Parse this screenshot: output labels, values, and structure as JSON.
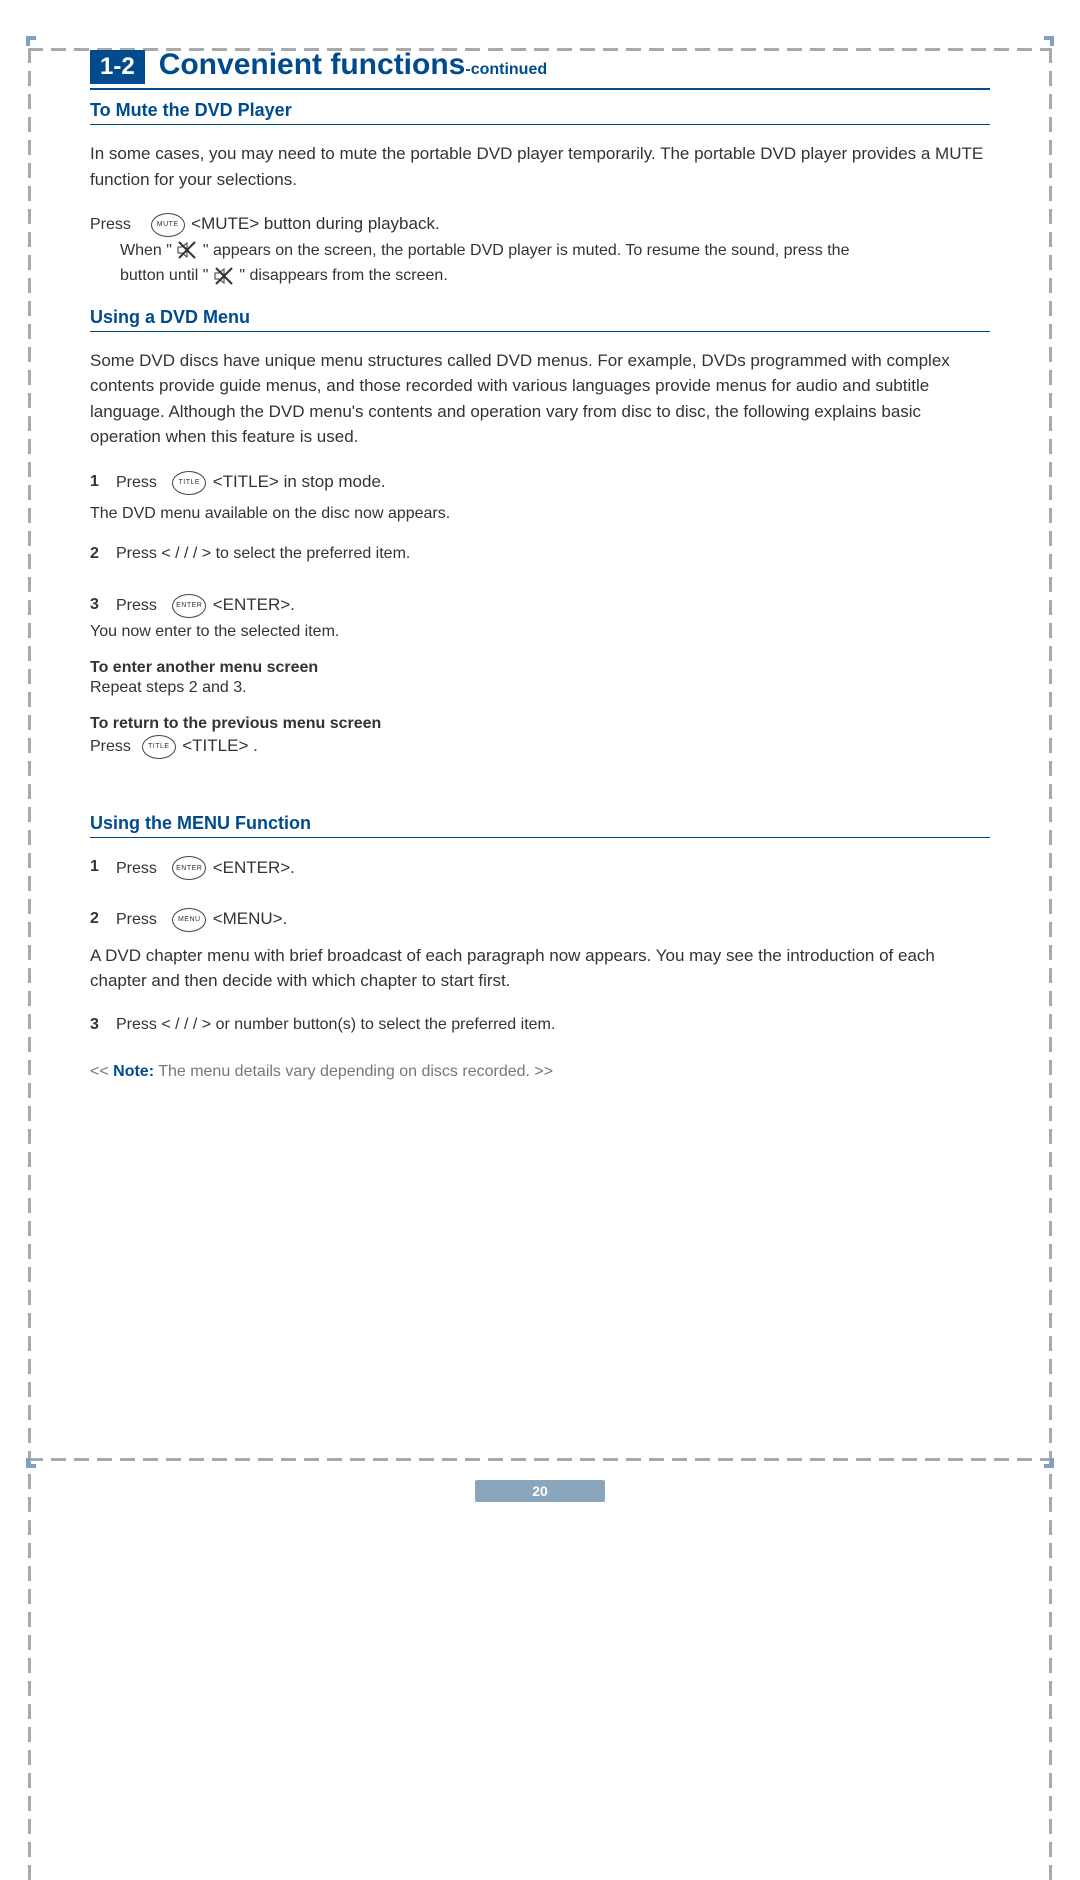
{
  "colors": {
    "accent": "#004b8d",
    "dash_gray": "#a9a9a9",
    "dash_blue": "#7da0c7",
    "text": "#333333",
    "note_gray": "#777777",
    "footer_bg": "#8aa6bd"
  },
  "header": {
    "section_number": "1-2",
    "title": "Convenient functions",
    "continued": "-continued"
  },
  "mute": {
    "heading": "To Mute the DVD Player",
    "intro": "In some cases, you may need to mute the portable DVD player temporarily. The portable DVD player provides a MUTE function for your selections.",
    "press_label": "Press",
    "button_inner": "MUTE",
    "button_tag": "<MUTE> button during playback.",
    "line2a": "When  \"",
    "line2b": "\" appears on the screen, the portable DVD player is muted. To resume the sound, press the",
    "line3a": "button until   \"",
    "line3b": "\" disappears from the screen."
  },
  "dvd_menu": {
    "heading": "Using a DVD Menu",
    "intro": "Some DVD discs have unique menu structures called DVD menus. For example, DVDs programmed with complex contents provide guide menus, and those recorded with various languages provide menus for audio and subtitle language. Although the DVD menu's contents and operation vary from disc to disc, the following explains basic operation when this feature is used.",
    "step1_press": "Press",
    "step1_btn": "TITLE",
    "step1_tag": "<TITLE> in stop mode.",
    "step1_after": "The DVD menu available on the disc now appears.",
    "step2": "Press  <        /      /      /       > to select the preferred item.",
    "step3_press": "Press",
    "step3_btn": "ENTER",
    "step3_tag": "<ENTER>.",
    "step3_after": "You now enter to the selected item.",
    "enter_another_h": "To enter another menu screen",
    "enter_another_b": "Repeat steps 2 and 3.",
    "return_h": "To return to the previous menu screen",
    "return_press": "Press",
    "return_btn": "TITLE",
    "return_tag": "<TITLE>  ."
  },
  "menu_fn": {
    "heading": "Using the MENU Function",
    "step1_press": "Press",
    "step1_btn": "ENTER",
    "step1_tag": "<ENTER>.",
    "step2_press": "Press",
    "step2_btn": "MENU",
    "step2_tag": "<MENU>.",
    "after": "A DVD chapter menu with brief broadcast of each paragraph now appears. You may see the introduction of each chapter and then decide with which chapter to start first.",
    "step3": "Press  <        /      /      /       > or number button(s) to select the preferred item."
  },
  "note": {
    "prefix": "<< ",
    "label": "Note:",
    "text": " The menu details vary depending on discs recorded. >>"
  },
  "page_number": "20"
}
